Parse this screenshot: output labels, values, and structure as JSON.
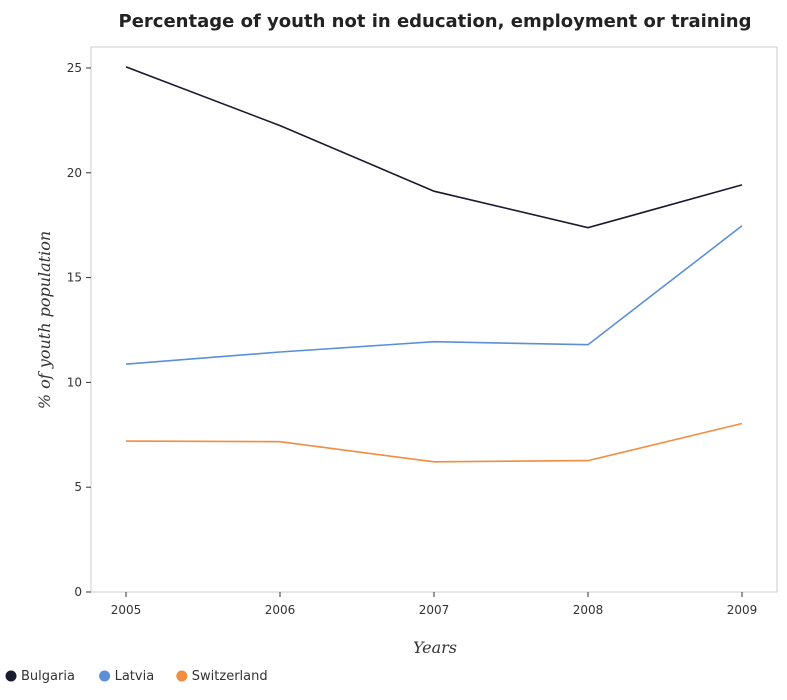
{
  "chart_data": {
    "type": "line",
    "title": "Percentage of youth not in education, employment or training",
    "xlabel": "Years",
    "ylabel": "% of youth population",
    "x": [
      "2005",
      "2006",
      "2007",
      "2008",
      "2009"
    ],
    "ylim": [
      0,
      26
    ],
    "yticks": [
      0,
      5,
      10,
      15,
      20,
      25
    ],
    "grid": false,
    "legend_position": "bottom-left",
    "series": [
      {
        "name": "Bulgaria",
        "color": "#1a1a2e",
        "values": [
          25.05,
          22.25,
          19.12,
          17.38,
          19.42
        ]
      },
      {
        "name": "Latvia",
        "color": "#5b8fd6",
        "values": [
          10.87,
          11.45,
          11.94,
          11.8,
          17.47
        ]
      },
      {
        "name": "Switzerland",
        "color": "#f28c3f",
        "values": [
          7.2,
          7.17,
          6.21,
          6.27,
          8.04
        ]
      }
    ]
  }
}
